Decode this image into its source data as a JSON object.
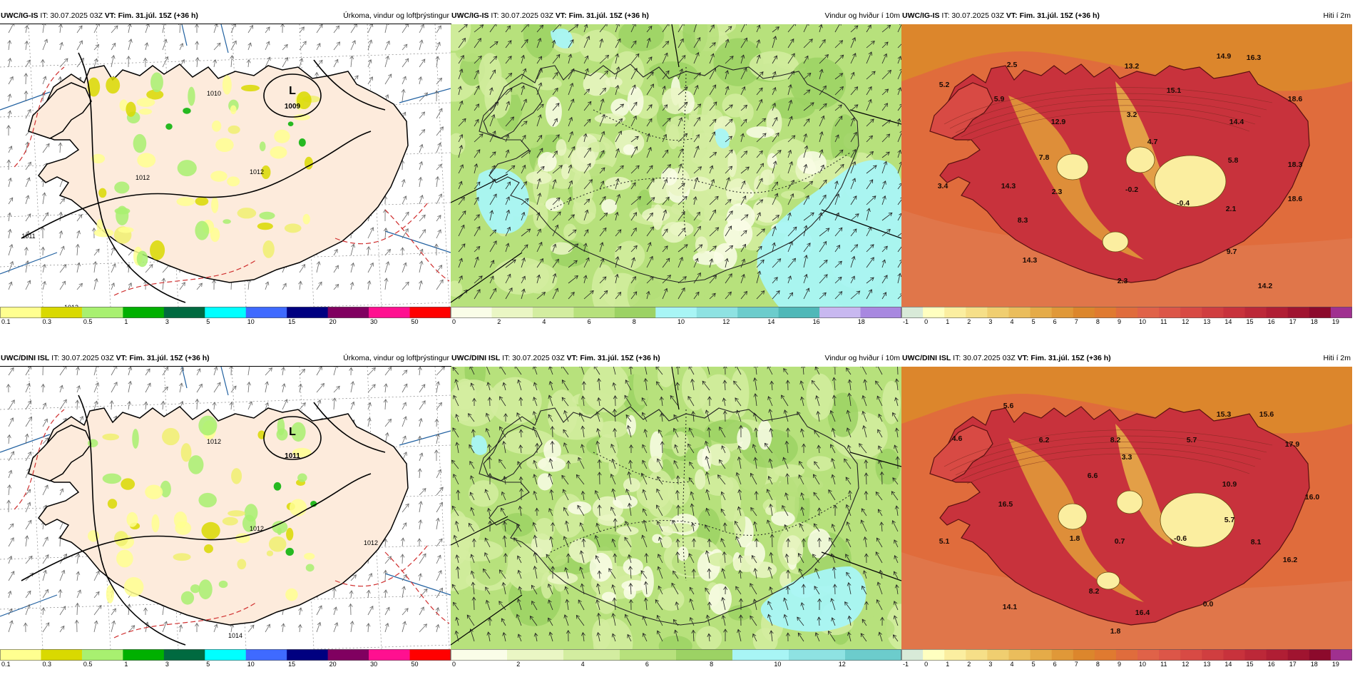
{
  "panels": [
    {
      "id": "precip-top",
      "model": "UWC/IG-IS",
      "it_label": "IT: 30.07.2025 03Z",
      "vt_label": "VT: Fim. 31.júl. 15Z (+36 h)",
      "title": "Úrkoma, vindur og loftþrýstingur",
      "kind": "precip",
      "map_labels": [
        {
          "text": "L",
          "kind": "low"
        },
        {
          "text": "1009",
          "kind": "pressure"
        },
        {
          "text": "1012",
          "kind": "isobar"
        },
        {
          "text": "1012",
          "kind": "isobar"
        },
        {
          "text": "1010",
          "kind": "isobar"
        },
        {
          "text": "1011",
          "kind": "isobar"
        },
        {
          "text": "1012",
          "kind": "isobar"
        }
      ],
      "scale_labels": [
        "0.1",
        "0.3",
        "0.5",
        "1",
        "3",
        "5",
        "10",
        "15",
        "20",
        "30",
        "50"
      ],
      "scale_colors": [
        "#ffff90",
        "#d9d900",
        "#a8f070",
        "#00b000",
        "#006a40",
        "#00ffff",
        "#3f6aff",
        "#000080",
        "#800060",
        "#ff1090",
        "#ff0000"
      ]
    },
    {
      "id": "wind-top",
      "model": "UWC/IG-IS",
      "it_label": "IT: 30.07.2025 03Z",
      "vt_label": "VT: Fim. 31.júl. 15Z (+36 h)",
      "title": "Vindur og hviður í 10m",
      "kind": "wind",
      "scale_labels": [
        "0",
        "2",
        "4",
        "6",
        "8",
        "10",
        "12",
        "14",
        "16",
        "18"
      ],
      "scale_colors": [
        "#fafde8",
        "#eaf6c4",
        "#d3eda0",
        "#b7e17c",
        "#9cd264",
        "#a8f5f5",
        "#8ee2e2",
        "#6ccccc",
        "#4fb8b8",
        "#c8b8f0",
        "#a888e0"
      ]
    },
    {
      "id": "temp-top",
      "model": "UWC/IG-IS",
      "it_label": "IT: 30.07.2025 03Z",
      "vt_label": "VT: Fim. 31.júl. 15Z (+36 h)",
      "title": "Hiti í 2m",
      "kind": "temp",
      "map_labels": [
        "2.5",
        "5.2",
        "5.9",
        "13.2",
        "15.1",
        "14.9",
        "16.3",
        "18.6",
        "12.9",
        "3.2",
        "14.4",
        "4.7",
        "7.8",
        "5.8",
        "18.3",
        "3.4",
        "14.3",
        "2.3",
        "-0.2",
        "-0.4",
        "2.1",
        "18.6",
        "8.3",
        "9.7",
        "14.3",
        "2.3",
        "14.2"
      ],
      "scale_labels": [
        "-1",
        "0",
        "1",
        "2",
        "3",
        "4",
        "5",
        "6",
        "7",
        "8",
        "9",
        "10",
        "11",
        "12",
        "13",
        "14",
        "15",
        "16",
        "17",
        "18",
        "19"
      ],
      "scale_colors": [
        "#d8ead8",
        "#ffffc0",
        "#fbeea0",
        "#f6df88",
        "#f0ce70",
        "#eabd5c",
        "#e5ab48",
        "#e09838",
        "#dc862c",
        "#e07a30",
        "#e06c3c",
        "#e06248",
        "#dc5648",
        "#d84a44",
        "#d03e40",
        "#c8323c",
        "#bc2838",
        "#b01e34",
        "#a01430",
        "#8c0a2c",
        "#a03090"
      ]
    },
    {
      "id": "precip-bottom",
      "model": "UWC/DINI ISL",
      "it_label": "IT: 30.07.2025 03Z",
      "vt_label": "VT: Fim. 31.júl. 15Z (+36 h)",
      "title": "Úrkoma, vindur og loftþrýstingur",
      "kind": "precip",
      "map_labels": [
        {
          "text": "L",
          "kind": "low"
        },
        {
          "text": "1011",
          "kind": "pressure"
        },
        {
          "text": "1012",
          "kind": "isobar"
        },
        {
          "text": "1012",
          "kind": "isobar"
        },
        {
          "text": "1014",
          "kind": "isobar"
        },
        {
          "text": "1012",
          "kind": "isobar"
        }
      ],
      "scale_labels": [
        "0.1",
        "0.3",
        "0.5",
        "1",
        "3",
        "5",
        "10",
        "15",
        "20",
        "30",
        "50"
      ],
      "scale_colors": [
        "#ffff90",
        "#d9d900",
        "#a8f070",
        "#00b000",
        "#006a40",
        "#00ffff",
        "#3f6aff",
        "#000080",
        "#800060",
        "#ff1090",
        "#ff0000"
      ]
    },
    {
      "id": "wind-bottom",
      "model": "UWC/DINI ISL",
      "it_label": "IT: 30.07.2025 03Z",
      "vt_label": "VT: Fim. 31.júl. 15Z (+36 h)",
      "title": "Vindur og hviður í 10m",
      "kind": "wind",
      "scale_labels": [
        "0",
        "2",
        "4",
        "6",
        "8",
        "10",
        "12"
      ],
      "scale_colors": [
        "#fafde8",
        "#eaf6c4",
        "#d3eda0",
        "#b7e17c",
        "#9cd264",
        "#a8f5f5",
        "#8ee2e2",
        "#6ccccc"
      ]
    },
    {
      "id": "temp-bottom",
      "model": "UWC/DINI ISL",
      "it_label": "IT: 30.07.2025 03Z",
      "vt_label": "VT: Fim. 31.júl. 15Z (+36 h)",
      "title": "Hiti í 2m",
      "kind": "temp",
      "map_labels": [
        "5.6",
        "4.6",
        "6.2",
        "8.2",
        "5.7",
        "15.3",
        "15.6",
        "3.3",
        "17.9",
        "6.6",
        "10.9",
        "16.0",
        "16.5",
        "5.7",
        "5.1",
        "1.8",
        "0.7",
        "-0.6",
        "8.1",
        "16.2",
        "8.2",
        "14.1",
        "0.0",
        "16.4",
        "1.8"
      ],
      "scale_labels": [
        "-1",
        "0",
        "1",
        "2",
        "3",
        "4",
        "5",
        "6",
        "7",
        "8",
        "9",
        "10",
        "11",
        "12",
        "13",
        "14",
        "15",
        "16",
        "17",
        "18",
        "19"
      ],
      "scale_colors": [
        "#d8ead8",
        "#ffffc0",
        "#fbeea0",
        "#f6df88",
        "#f0ce70",
        "#eabd5c",
        "#e5ab48",
        "#e09838",
        "#dc862c",
        "#e07a30",
        "#e06c3c",
        "#e06248",
        "#dc5648",
        "#d84a44",
        "#d03e40",
        "#c8323c",
        "#bc2838",
        "#b01e34",
        "#a01430",
        "#8c0a2c",
        "#a03090"
      ]
    }
  ]
}
